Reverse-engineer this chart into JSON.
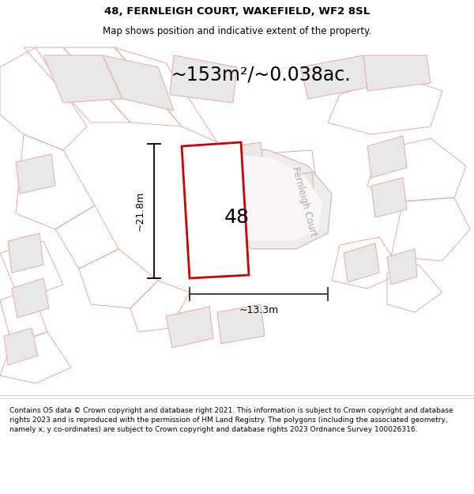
{
  "title_line1": "48, FERNLEIGH COURT, WAKEFIELD, WF2 8SL",
  "title_line2": "Map shows position and indicative extent of the property.",
  "footer_text": "Contains OS data © Crown copyright and database right 2021. This information is subject to Crown copyright and database rights 2023 and is reproduced with the permission of HM Land Registry. The polygons (including the associated geometry, namely x, y co-ordinates) are subject to Crown copyright and database rights 2023 Ordnance Survey 100026316.",
  "area_text": "~153m²/~0.038ac.",
  "label_48": "48",
  "dim_height": "~21.8m",
  "dim_width": "~13.3m",
  "road_label": "Fernleigh Court",
  "map_bg": "#ffffff",
  "highlight_color": "#cc0000",
  "building_fill": "#e8e8e8",
  "building_edge": "#c8b8b8",
  "outline_color": "#e8a8a8",
  "road_edge": "#b0b0b0",
  "road_label_color": "#aaaaaa",
  "title_fontsize": 9.5,
  "subtitle_fontsize": 8.5,
  "area_fontsize": 17,
  "label_fontsize": 18,
  "dim_fontsize": 9,
  "footer_fontsize": 6.5
}
